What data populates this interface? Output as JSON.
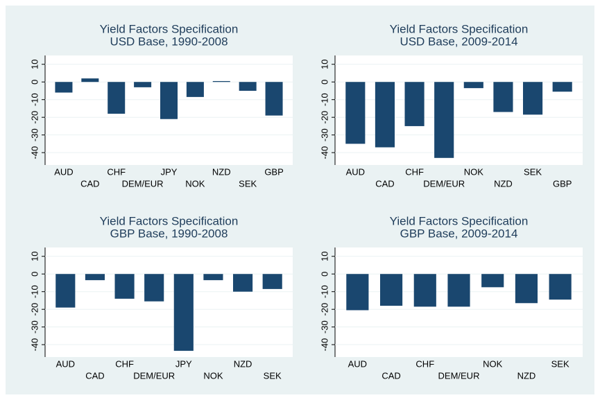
{
  "chart_data": [
    {
      "type": "bar",
      "title": "Yield Factors Specification",
      "subtitle": "USD Base, 1990-2008",
      "categories": [
        "AUD",
        "CAD",
        "CHF",
        "DEM/EUR",
        "JPY",
        "NOK",
        "NZD",
        "SEK",
        "GBP"
      ],
      "values": [
        -6,
        2,
        -18,
        -3,
        -21,
        -8.5,
        0.5,
        -5,
        -19
      ],
      "color": "#1a476f",
      "ylim": [
        -47,
        15
      ],
      "yticks": [
        -40,
        -30,
        -20,
        -10,
        0,
        10
      ],
      "grid": true
    },
    {
      "type": "bar",
      "title": "Yield Factors Specification",
      "subtitle": "USD Base, 2009-2014",
      "categories": [
        "AUD",
        "CAD",
        "CHF",
        "DEM/EUR",
        "NOK",
        "NZD",
        "SEK",
        "GBP"
      ],
      "values": [
        -35,
        -37,
        -25,
        -43,
        -3.5,
        -17,
        -18.5,
        -5.5
      ],
      "color": "#1a476f",
      "ylim": [
        -47,
        15
      ],
      "yticks": [
        -40,
        -30,
        -20,
        -10,
        0,
        10
      ],
      "grid": true
    },
    {
      "type": "bar",
      "title": "Yield Factors Specification",
      "subtitle": "GBP Base, 1990-2008",
      "categories": [
        "AUD",
        "CAD",
        "CHF",
        "DEM/EUR",
        "JPY",
        "NOK",
        "NZD",
        "SEK"
      ],
      "values": [
        -19,
        -3.5,
        -14,
        -15.5,
        -43.5,
        -3.5,
        -10,
        -8.5
      ],
      "color": "#1a476f",
      "ylim": [
        -47,
        15
      ],
      "yticks": [
        -40,
        -30,
        -20,
        -10,
        0,
        10
      ],
      "grid": true
    },
    {
      "type": "bar",
      "title": "Yield Factors Specification",
      "subtitle": "GBP Base, 2009-2014",
      "categories": [
        "AUD",
        "CAD",
        "CHF",
        "DEM/EUR",
        "NOK",
        "NZD",
        "SEK"
      ],
      "values": [
        -20.5,
        -18,
        -18.5,
        -18.5,
        -7.5,
        -16.5,
        -14.5
      ],
      "color": "#1a476f",
      "ylim": [
        -47,
        15
      ],
      "yticks": [
        -40,
        -30,
        -20,
        -10,
        0,
        10
      ],
      "grid": true
    }
  ]
}
